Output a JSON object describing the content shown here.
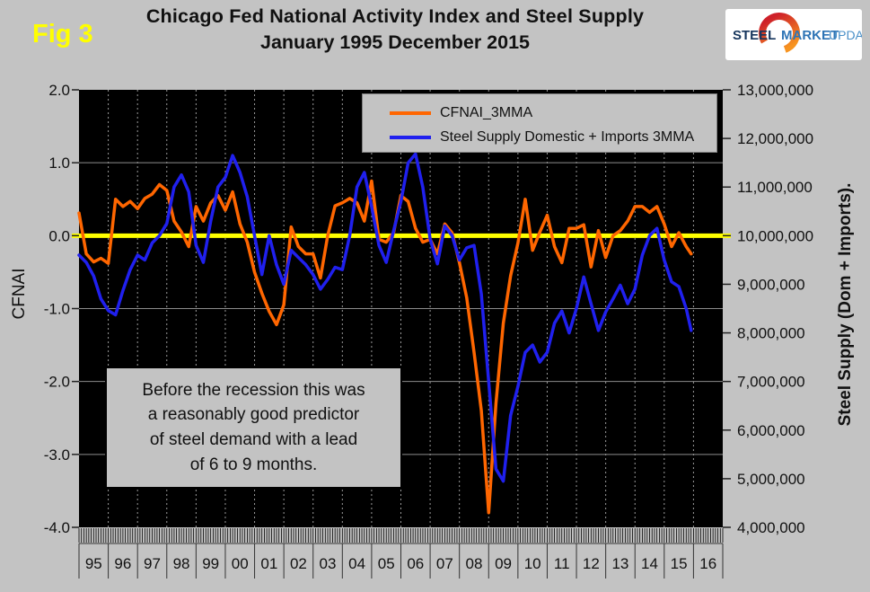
{
  "figure_label": "Fig 3",
  "title": {
    "line1": "Chicago Fed National Activity Index and Steel Supply",
    "line2": "January 1995 December 2015"
  },
  "logo": {
    "steel": "STEEL",
    "market": "MARKET",
    "update": "UPDATE"
  },
  "annotation": {
    "lines": [
      "Before the recession this was",
      "a reasonably good predictor",
      "of steel demand with a lead",
      "of 6 to 9 months."
    ]
  },
  "colors": {
    "background": "#c3c3c3",
    "plot_background": "#000000",
    "cfnai_line": "#ff6600",
    "steel_line": "#2020ee",
    "zero_line": "#ffff00",
    "grid_horizontal": "#8c8c8c",
    "grid_vertical": "#9a9a9a",
    "logo_steel_text": "#17365d",
    "logo_market_text": "#2e74b5",
    "logo_update_text": "#4a90c8"
  },
  "chart_data": {
    "type": "line",
    "title": "Chicago Fed National Activity Index and Steel Supply January 1995 December 2015",
    "left_axis": {
      "label": "CFNAI",
      "min": -4,
      "max": 2,
      "ticks": [
        "2.0",
        "1.0",
        "0.0",
        "-1.0",
        "-2.0",
        "-3.0",
        "-4.0"
      ],
      "tick_values": [
        2,
        1,
        0,
        -1,
        -2,
        -3,
        -4
      ]
    },
    "right_axis": {
      "label": "Steel Supply (Dom + Imports).",
      "min": 4000000,
      "max": 13000000,
      "ticks": [
        "13,000,000",
        "12,000,000",
        "11,000,000",
        "10,000,000",
        "9,000,000",
        "8,000,000",
        "7,000,000",
        "6,000,000",
        "5,000,000",
        "4,000,000"
      ],
      "tick_values": [
        13000000,
        12000000,
        11000000,
        10000000,
        9000000,
        8000000,
        7000000,
        6000000,
        5000000,
        4000000
      ]
    },
    "x_axis": {
      "start_year": 1995,
      "end_year": 2017,
      "year_labels": [
        "95",
        "96",
        "97",
        "98",
        "99",
        "00",
        "01",
        "02",
        "03",
        "04",
        "05",
        "06",
        "07",
        "08",
        "09",
        "10",
        "11",
        "12",
        "13",
        "14",
        "15",
        "16"
      ],
      "minor_ticks_per_year": 12
    },
    "reference_line": {
      "value": 0,
      "color": "#ffff00"
    },
    "grid": {
      "horizontal_values": [
        1,
        -1,
        -2,
        -3
      ],
      "vertical_every_year": true
    },
    "legend_position": "top-center",
    "x": [
      1995,
      1995.25,
      1995.5,
      1995.75,
      1996,
      1996.25,
      1996.5,
      1996.75,
      1997,
      1997.25,
      1997.5,
      1997.75,
      1998,
      1998.25,
      1998.5,
      1998.75,
      1999,
      1999.25,
      1999.5,
      1999.75,
      2000,
      2000.25,
      2000.5,
      2000.75,
      2001,
      2001.25,
      2001.5,
      2001.75,
      2002,
      2002.25,
      2002.5,
      2002.75,
      2003,
      2003.25,
      2003.5,
      2003.75,
      2004,
      2004.25,
      2004.5,
      2004.75,
      2005,
      2005.25,
      2005.5,
      2005.75,
      2006,
      2006.25,
      2006.5,
      2006.75,
      2007,
      2007.25,
      2007.5,
      2007.75,
      2008,
      2008.25,
      2008.5,
      2008.75,
      2009,
      2009.25,
      2009.5,
      2009.75,
      2010,
      2010.25,
      2010.5,
      2010.75,
      2011,
      2011.25,
      2011.5,
      2011.75,
      2012,
      2012.25,
      2012.5,
      2012.75,
      2013,
      2013.25,
      2013.5,
      2013.75,
      2014,
      2014.25,
      2014.5,
      2014.75,
      2015,
      2015.25,
      2015.5,
      2015.75,
      2015.92
    ],
    "series": [
      {
        "name": "CFNAI_3MMA",
        "axis": "left",
        "color": "#ff6600",
        "values": [
          0.31,
          -0.25,
          -0.36,
          -0.31,
          -0.38,
          0.5,
          0.4,
          0.47,
          0.37,
          0.51,
          0.57,
          0.7,
          0.62,
          0.2,
          0.05,
          -0.15,
          0.4,
          0.2,
          0.45,
          0.55,
          0.35,
          0.6,
          0.16,
          -0.09,
          -0.5,
          -0.79,
          -1.04,
          -1.22,
          -0.95,
          0.12,
          -0.15,
          -0.25,
          -0.25,
          -0.58,
          0.0,
          0.41,
          0.45,
          0.51,
          0.45,
          0.2,
          0.75,
          -0.05,
          -0.09,
          0.04,
          0.55,
          0.47,
          0.1,
          -0.09,
          -0.05,
          -0.25,
          0.16,
          0.04,
          -0.37,
          -0.85,
          -1.6,
          -2.4,
          -3.8,
          -2.3,
          -1.2,
          -0.55,
          -0.1,
          0.5,
          -0.2,
          0.05,
          0.28,
          -0.15,
          -0.37,
          0.1,
          0.1,
          0.15,
          -0.43,
          0.07,
          -0.3,
          0.0,
          0.07,
          0.2,
          0.4,
          0.4,
          0.32,
          0.4,
          0.16,
          -0.15,
          0.04,
          -0.15,
          -0.25
        ]
      },
      {
        "name": "Steel Supply Domestic + Imports 3MMA",
        "axis": "right",
        "color": "#2020ee",
        "values": [
          9600000,
          9450000,
          9170000,
          8700000,
          8460000,
          8370000,
          8870000,
          9300000,
          9600000,
          9500000,
          9850000,
          10000000,
          10250000,
          11000000,
          11250000,
          10900000,
          9800000,
          9450000,
          10300000,
          11000000,
          11200000,
          11650000,
          11300000,
          10800000,
          10000000,
          9200000,
          10000000,
          9400000,
          9000000,
          9700000,
          9550000,
          9400000,
          9200000,
          8900000,
          9100000,
          9350000,
          9300000,
          10000000,
          11000000,
          11300000,
          10600000,
          9800000,
          9450000,
          10100000,
          10700000,
          11500000,
          11680000,
          11000000,
          9930000,
          9420000,
          10200000,
          10000000,
          9500000,
          9750000,
          9800000,
          8800000,
          7000000,
          5200000,
          4950000,
          6300000,
          6900000,
          7600000,
          7750000,
          7400000,
          7600000,
          8200000,
          8450000,
          8000000,
          8500000,
          9150000,
          8600000,
          8050000,
          8430000,
          8700000,
          8980000,
          8600000,
          8900000,
          9600000,
          10000000,
          10150000,
          9500000,
          9050000,
          8950000,
          8500000,
          8050000
        ]
      }
    ]
  }
}
